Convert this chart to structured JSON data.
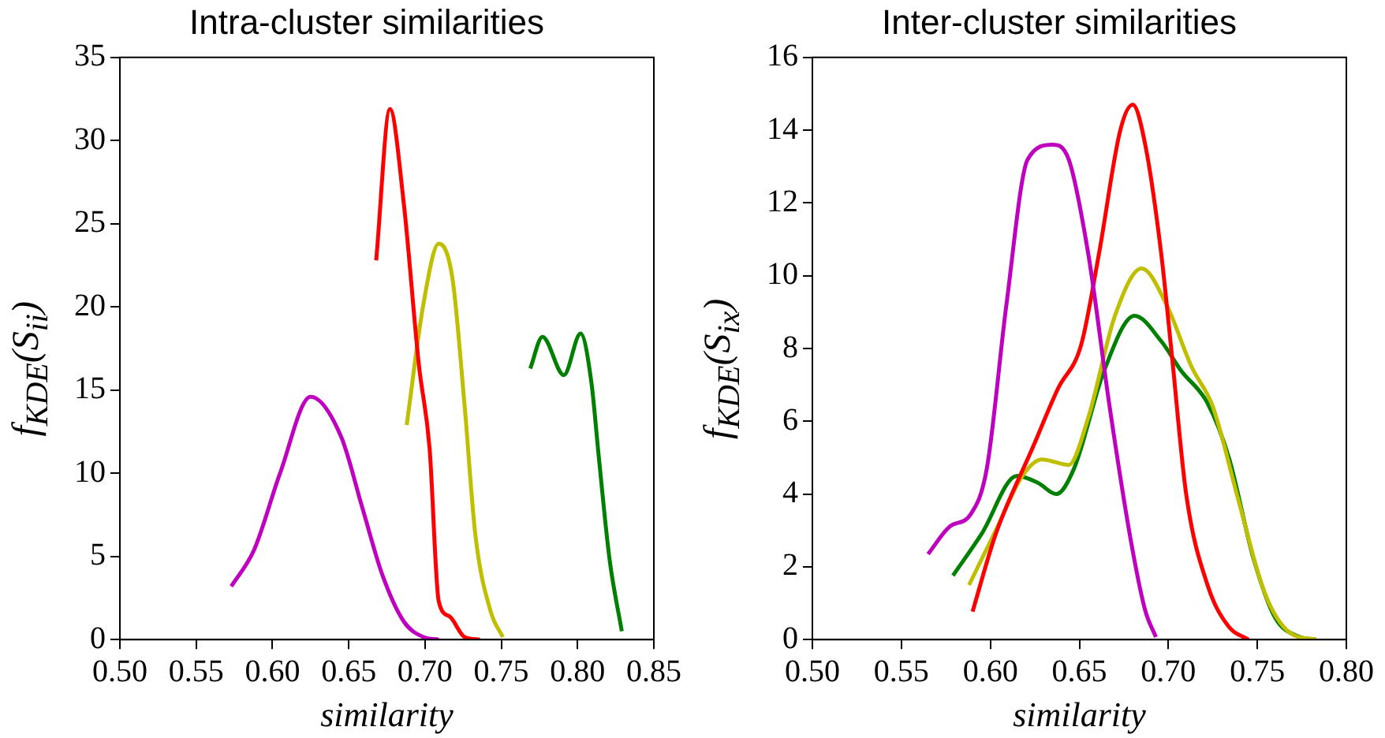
{
  "chart_data": [
    {
      "type": "line",
      "title": "Intra-cluster similarities",
      "xlabel": "similarity",
      "ylabel": "f$_{KDE}$(S$_{ii}$)",
      "xlim": [
        0.5,
        0.85
      ],
      "xticks": [
        {
          "value": 0.5,
          "label": "0.50"
        },
        {
          "value": 0.55,
          "label": "0.55"
        },
        {
          "value": 0.6,
          "label": "0.60"
        },
        {
          "value": 0.65,
          "label": "0.65"
        },
        {
          "value": 0.7,
          "label": "0.70"
        },
        {
          "value": 0.75,
          "label": "0.75"
        },
        {
          "value": 0.8,
          "label": "0.80"
        },
        {
          "value": 0.85,
          "label": "0.85"
        }
      ],
      "ylim": [
        0,
        35
      ],
      "yticks": [
        0,
        5,
        10,
        15,
        20,
        25,
        30,
        35
      ],
      "grid": false,
      "legend": false,
      "marker": "none",
      "line_style": "solid",
      "series": [
        {
          "color": "#bf00bf",
          "x": [
            0.573,
            0.588,
            0.605,
            0.625,
            0.645,
            0.659,
            0.672,
            0.686,
            0.699,
            0.709
          ],
          "values": [
            3.2,
            5.4,
            10.0,
            14.6,
            12.2,
            7.9,
            3.9,
            1.1,
            0.15,
            0
          ]
        },
        {
          "color": "#ff0000",
          "x": [
            0.668,
            0.677,
            0.686,
            0.696,
            0.703,
            0.709,
            0.716,
            0.726,
            0.736
          ],
          "values": [
            22.8,
            31.9,
            26.3,
            16.5,
            11.5,
            2.3,
            1.4,
            0.15,
            0
          ]
        },
        {
          "color": "#bfbf00",
          "x": [
            0.688,
            0.699,
            0.709,
            0.718,
            0.726,
            0.733,
            0.743,
            0.751
          ],
          "values": [
            12.9,
            20.2,
            23.8,
            21.7,
            14.0,
            6.3,
            1.7,
            0.15
          ]
        },
        {
          "color": "#008000",
          "x": [
            0.769,
            0.777,
            0.791,
            0.802,
            0.809,
            0.814,
            0.821,
            0.829
          ],
          "values": [
            16.3,
            18.2,
            15.9,
            18.4,
            15.5,
            10.9,
            4.8,
            0.5
          ]
        }
      ]
    },
    {
      "type": "line",
      "title": "Inter-cluster similarities",
      "xlabel": "similarity",
      "ylabel": "f$_{KDE}$(S$_{ix}$)",
      "xlim": [
        0.5,
        0.8
      ],
      "xticks": [
        {
          "value": 0.5,
          "label": "0.50"
        },
        {
          "value": 0.55,
          "label": "0.55"
        },
        {
          "value": 0.6,
          "label": "0.60"
        },
        {
          "value": 0.65,
          "label": "0.65"
        },
        {
          "value": 0.7,
          "label": "0.70"
        },
        {
          "value": 0.75,
          "label": "0.75"
        },
        {
          "value": 0.8,
          "label": "0.80"
        }
      ],
      "ylim": [
        0,
        16
      ],
      "yticks": [
        0,
        2,
        4,
        6,
        8,
        10,
        12,
        14,
        16
      ],
      "grid": false,
      "legend": false,
      "marker": "none",
      "line_style": "solid",
      "series": [
        {
          "color": "#bf00bf",
          "x": [
            0.565,
            0.577,
            0.589,
            0.598,
            0.609,
            0.621,
            0.635,
            0.644,
            0.655,
            0.667,
            0.679,
            0.687,
            0.693
          ],
          "values": [
            2.35,
            3.1,
            3.45,
            4.7,
            9.2,
            13.2,
            13.6,
            13.2,
            10.6,
            6.4,
            2.7,
            0.8,
            0.07
          ]
        },
        {
          "color": "#ff0000",
          "x": [
            0.59,
            0.603,
            0.624,
            0.638,
            0.651,
            0.661,
            0.673,
            0.68,
            0.687,
            0.696,
            0.702,
            0.71,
            0.722,
            0.734,
            0.745
          ],
          "values": [
            0.77,
            2.9,
            5.3,
            6.9,
            8.1,
            10.6,
            14.0,
            14.7,
            13.6,
            10.6,
            7.8,
            4.0,
            1.5,
            0.35,
            0
          ]
        },
        {
          "color": "#bfbf00",
          "x": [
            0.588,
            0.603,
            0.618,
            0.629,
            0.644,
            0.655,
            0.67,
            0.685,
            0.699,
            0.713,
            0.725,
            0.739,
            0.754,
            0.768,
            0.783
          ],
          "values": [
            1.5,
            3.0,
            4.5,
            4.95,
            4.8,
            6.1,
            8.9,
            10.2,
            9.2,
            7.5,
            6.4,
            3.9,
            1.3,
            0.2,
            0
          ]
        },
        {
          "color": "#008000",
          "x": [
            0.579,
            0.595,
            0.615,
            0.627,
            0.637,
            0.647,
            0.664,
            0.681,
            0.696,
            0.707,
            0.722,
            0.734,
            0.748,
            0.76,
            0.774,
            0.783
          ],
          "values": [
            1.76,
            2.9,
            4.5,
            4.3,
            4.0,
            4.7,
            7.4,
            8.9,
            8.2,
            7.4,
            6.5,
            5.0,
            2.2,
            0.6,
            0.07,
            0
          ]
        }
      ]
    }
  ]
}
